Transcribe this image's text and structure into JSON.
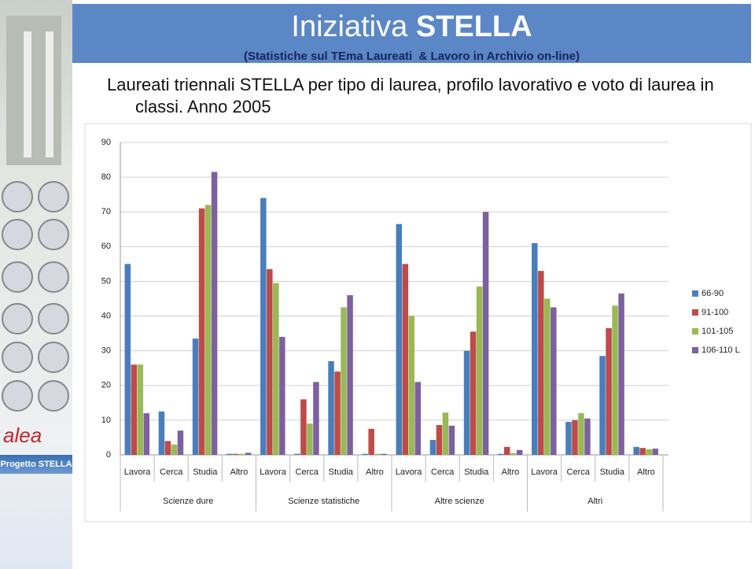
{
  "header": {
    "title": "Iniziativa",
    "title_bold": "STELLA",
    "subtitle": "(Statistiche sul TEma Laureati  & Lavoro in Archivio on-line)"
  },
  "heading": "Laureati triennali STELLA per tipo di laurea, profilo lavorativo e voto di laurea in classi. Anno 2005",
  "sidebar": {
    "logo": "alea",
    "project": "Progetto STELLA"
  },
  "chart_data": {
    "type": "bar",
    "categories": [
      "Lavora",
      "Cerca",
      "Studia",
      "Altro",
      "Lavora",
      "Cerca",
      "Studia",
      "Altro",
      "Lavora",
      "Cerca",
      "Studia",
      "Altro",
      "Lavora",
      "Cerca",
      "Studia",
      "Altro"
    ],
    "groups": [
      "Scienze dure",
      "Scienze statistiche",
      "Altre scienze",
      "Altri"
    ],
    "series": [
      {
        "name": "66-90",
        "color": "#4a7ebb",
        "values": [
          55,
          12.5,
          33.5,
          0.3,
          74,
          0.3,
          27,
          0.3,
          66.5,
          4.3,
          30,
          0.3,
          61,
          9.5,
          28.5,
          2.3
        ]
      },
      {
        "name": "91-100",
        "color": "#be4b48",
        "values": [
          26,
          4,
          71,
          0.3,
          53.5,
          16,
          24,
          7.5,
          55,
          8.6,
          35.5,
          2.3,
          53,
          10,
          36.5,
          2
        ]
      },
      {
        "name": "101-105",
        "color": "#98b954",
        "values": [
          26,
          3,
          72,
          0.3,
          49.5,
          9,
          42.5,
          0.3,
          40,
          12.2,
          48.5,
          0.5,
          45,
          12,
          43,
          1.6
        ]
      },
      {
        "name": "106-110 L",
        "color": "#7d60a0",
        "values": [
          12,
          7,
          81.5,
          0.6,
          34,
          21,
          46,
          0.3,
          21,
          8.4,
          70,
          1.4,
          42.5,
          10.5,
          46.5,
          1.8
        ]
      }
    ],
    "ylim": [
      0,
      90
    ],
    "yticks": [
      0,
      10,
      20,
      30,
      40,
      50,
      60,
      70,
      80,
      90
    ],
    "grid": true,
    "legend": "right"
  }
}
